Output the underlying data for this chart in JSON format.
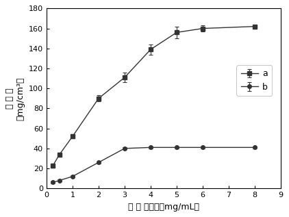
{
  "series_a": {
    "x": [
      0.25,
      0.5,
      1.0,
      2.0,
      3.0,
      4.0,
      5.0,
      6.0,
      8.0
    ],
    "y": [
      23,
      34,
      52,
      90,
      111,
      139,
      156,
      160,
      162
    ],
    "yerr": [
      2,
      2,
      2,
      3,
      5,
      5,
      6,
      3,
      2
    ],
    "label": "a",
    "marker": "s",
    "color": "#333333"
  },
  "series_b": {
    "x": [
      0.25,
      0.5,
      1.0,
      2.0,
      3.0,
      4.0,
      5.0,
      6.0,
      8.0
    ],
    "y": [
      6,
      8,
      12,
      26,
      40,
      41,
      41,
      41,
      41
    ],
    "yerr": [
      1,
      1,
      1,
      1,
      1,
      1,
      1,
      1,
      1
    ],
    "label": "b",
    "marker": "o",
    "color": "#333333"
  },
  "xlim": [
    0,
    9
  ],
  "ylim": [
    0,
    180
  ],
  "xticks": [
    0,
    1,
    2,
    3,
    4,
    5,
    6,
    7,
    8,
    9
  ],
  "yticks": [
    0,
    20,
    40,
    60,
    80,
    100,
    120,
    140,
    160,
    180
  ],
  "xlabel_cn": "溶 菌 酶浓度",
  "xlabel_unit": "（mg/mL）",
  "ylabel_cn": "吸 附 量",
  "ylabel_unit": "（mg/cm³）",
  "background_color": "#ffffff"
}
